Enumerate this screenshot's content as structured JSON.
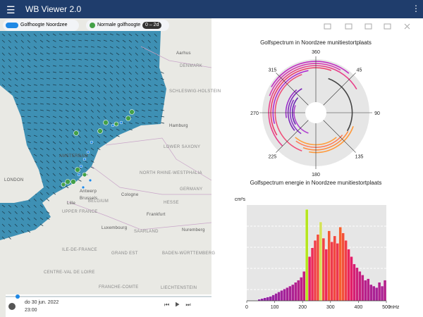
{
  "header": {
    "title": "WB Viewer 2.0"
  },
  "map": {
    "layers": [
      {
        "name": "Golfhoogte Noordzee"
      },
      {
        "name": "Normale golfhoogte",
        "range": "0 – 2d"
      }
    ],
    "labels": [
      "DENMARK",
      "Aarhus",
      "SCHLESWIG-HOLSTEIN",
      "Hamburg",
      "LOWER SAXONY",
      "AMSTERDAM",
      "NORTH RHINE-WESTPHALIA",
      "GERMANY",
      "LONDON",
      "Antwerp",
      "BELGIUM",
      "Brussels",
      "Cologne",
      "HESSE",
      "Lille",
      "Frankfurt",
      "UPPER FRANCE",
      "Luxembourg",
      "SAARLAND",
      "Nuremberg",
      "ILE-DE-FRANCE",
      "GRAND EST",
      "BADEN-WÜRTTEMBERG",
      "CENTRE-VAL DE LOIRE",
      "FRANCHE-COMTE",
      "LIECHTENSTEIN"
    ],
    "time": {
      "date": "do 30 jun. 2022",
      "hour": "23:00"
    }
  },
  "polar": {
    "type": "polar",
    "title": "Golfspectrum in Noordzee munitiestortplaats",
    "angles": [
      360,
      45,
      90,
      135,
      180,
      225,
      270,
      315
    ],
    "rlim": [
      0,
      100
    ],
    "arcs": [
      {
        "r": 95,
        "from": 300,
        "to": 40,
        "color": "#c22fc2"
      },
      {
        "r": 90,
        "from": 290,
        "to": 30,
        "color": "#d63ab0"
      },
      {
        "r": 85,
        "from": 225,
        "to": 60,
        "color": "#e8408a"
      },
      {
        "r": 80,
        "from": 240,
        "to": 20,
        "color": "#ee3a6a"
      },
      {
        "r": 75,
        "from": 255,
        "to": 350,
        "color": "#b02ad0"
      },
      {
        "r": 70,
        "from": 200,
        "to": 340,
        "color": "#f0507a"
      },
      {
        "r": 68,
        "from": 110,
        "to": 190,
        "color": "#ff9a3c"
      },
      {
        "r": 62,
        "from": 120,
        "to": 200,
        "color": "#ff8c40"
      },
      {
        "r": 56,
        "from": 130,
        "to": 215,
        "color": "#ff7a55"
      },
      {
        "r": 60,
        "from": 20,
        "to": 120,
        "color": "#444444"
      },
      {
        "r": 50,
        "from": 140,
        "to": 220,
        "color": "#ffa040"
      },
      {
        "r": 45,
        "from": 260,
        "to": 320,
        "color": "#9b30c8"
      },
      {
        "r": 40,
        "from": 230,
        "to": 330,
        "color": "#7d2bb8"
      },
      {
        "r": 35,
        "from": 215,
        "to": 300,
        "color": "#8c35c8"
      },
      {
        "r": 30,
        "from": 240,
        "to": 310,
        "color": "#6a28b0"
      },
      {
        "r": 26,
        "from": 200,
        "to": 290,
        "color": "#b040d0"
      }
    ]
  },
  "spectrum": {
    "type": "histogram",
    "title": "Golfspectrum energie in Noordzee munitiestortplaats",
    "ylabel": "cm²s",
    "xlabel": "mHz",
    "bins": [
      40,
      50,
      60,
      70,
      80,
      90,
      100,
      110,
      120,
      130,
      140,
      150,
      160,
      170,
      180,
      190,
      200,
      210,
      220,
      230,
      240,
      250,
      260,
      270,
      280,
      290,
      300,
      310,
      320,
      330,
      340,
      350,
      360,
      370,
      380,
      390,
      400,
      410,
      420,
      430,
      440,
      450,
      460,
      470,
      480,
      490,
      500
    ],
    "values": [
      2,
      3,
      4,
      5,
      6,
      8,
      10,
      12,
      14,
      16,
      18,
      20,
      22,
      25,
      28,
      32,
      40,
      124,
      60,
      72,
      82,
      90,
      107,
      85,
      70,
      95,
      80,
      88,
      78,
      100,
      92,
      82,
      70,
      60,
      50,
      45,
      40,
      35,
      28,
      30,
      22,
      20,
      18,
      25,
      20,
      28
    ],
    "color_scale": [
      "#8e24aa",
      "#e91e63",
      "#ff9800"
    ],
    "highlight": {
      "17": "#b5e61d",
      "22": "#d4e157"
    },
    "xlim": [
      0,
      500
    ],
    "xticks": [
      0,
      100,
      200,
      300,
      400,
      500
    ],
    "ylim": [
      0,
      130
    ]
  }
}
